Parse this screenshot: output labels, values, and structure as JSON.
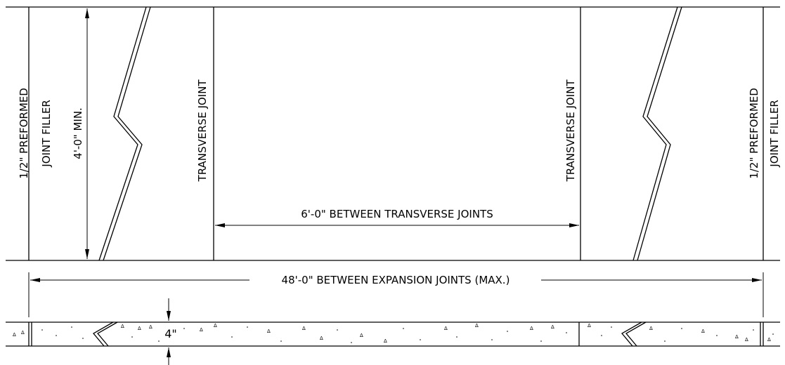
{
  "labels": {
    "preformed_left_line1": "1/2\" PREFORMED",
    "preformed_left_line2": "JOINT FILLER",
    "min_width": "4'-0\" MIN.",
    "transverse_left": "TRANSVERSE JOINT",
    "transverse_right": "TRANSVERSE JOINT",
    "between_transverse": "6'-0\" BETWEEN TRANSVERSE JOINTS",
    "preformed_right_line1": "1/2\" PREFORMED",
    "preformed_right_line2": "JOINT FILLER",
    "between_expansion": "48'-0\" BETWEEN EXPANSION JOINTS (MAX.)",
    "thickness": "4\""
  }
}
